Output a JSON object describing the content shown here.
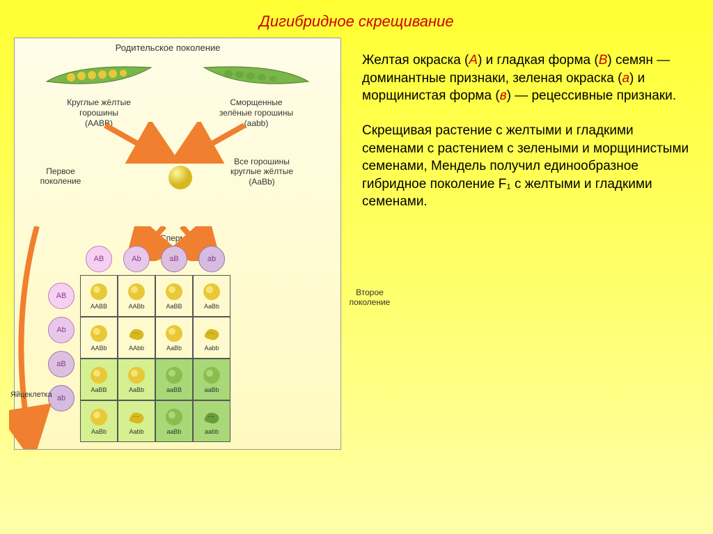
{
  "title": "Дигибридное скрещивание",
  "diagram": {
    "parent_gen_label": "Родительское поколение",
    "parent_left": {
      "caption_l1": "Круглые жёлтые",
      "caption_l2": "горошины",
      "genotype": "(AABB)",
      "pea_color": "#e8c838",
      "pod_color": "#7ab648"
    },
    "parent_right": {
      "caption_l1": "Сморщенные",
      "caption_l2": "зелёные горошины",
      "genotype": "(aabb)",
      "pea_color": "#6aa840",
      "pod_color": "#7ab648"
    },
    "f1_label": "Первое поколение",
    "f1_caption_l1": "Все горошины",
    "f1_caption_l2": "круглые жёлтые",
    "f1_genotype": "(AaBb)",
    "sperm_label": "Спермий",
    "egg_label": "Яйцеклетка",
    "f2_label": "Второе поколение",
    "gametes": [
      "AB",
      "Ab",
      "aB",
      "ab"
    ],
    "grid": [
      [
        {
          "g": "AABB",
          "pea": "round-yellow",
          "bg": "bg-yellow"
        },
        {
          "g": "AABb",
          "pea": "round-yellow",
          "bg": "bg-yellow"
        },
        {
          "g": "AaBB",
          "pea": "round-yellow",
          "bg": "bg-yellow"
        },
        {
          "g": "AaBb",
          "pea": "round-yellow",
          "bg": "bg-yellow"
        }
      ],
      [
        {
          "g": "AABb",
          "pea": "round-yellow",
          "bg": "bg-yellow"
        },
        {
          "g": "AAbb",
          "pea": "wrink-yellow",
          "bg": "bg-yellow"
        },
        {
          "g": "AaBb",
          "pea": "round-yellow",
          "bg": "bg-yellow"
        },
        {
          "g": "Aabb",
          "pea": "wrink-yellow",
          "bg": "bg-yellow"
        }
      ],
      [
        {
          "g": "AaBB",
          "pea": "round-yellow",
          "bg": "bg-lime"
        },
        {
          "g": "AaBb",
          "pea": "round-yellow",
          "bg": "bg-lime"
        },
        {
          "g": "aaBB",
          "pea": "round-green",
          "bg": "bg-green"
        },
        {
          "g": "aaBb",
          "pea": "round-green",
          "bg": "bg-green"
        }
      ],
      [
        {
          "g": "AaBb",
          "pea": "round-yellow",
          "bg": "bg-lime"
        },
        {
          "g": "Aabb",
          "pea": "wrink-yellow",
          "bg": "bg-lime"
        },
        {
          "g": "aaBb",
          "pea": "round-green",
          "bg": "bg-green"
        },
        {
          "g": "aabb",
          "pea": "wrink-green",
          "bg": "bg-green"
        }
      ]
    ]
  },
  "text": {
    "p1_pre": "Желтая окраска (",
    "p1_a": "А",
    "p1_mid1": ") и гладкая форма (",
    "p1_b": "В",
    "p1_mid2": ") семян — доминантные признаки, зеленая окраска (",
    "p1_ra": "а",
    "p1_mid3": ") и морщинистая форма (",
    "p1_rb": "в",
    "p1_end": ") — рецессивные признаки.",
    "p2": "Скрещивая растение с желтыми и гладкими семенами с растением с зелеными и морщинистыми семенами, Мендель получил единообразное гибридное поколение F₁ с желтыми и гладкими семенами."
  },
  "colors": {
    "round_yellow": "#e8c838",
    "wrink_yellow": "#d8b820",
    "round_green": "#8abd50",
    "wrink_green": "#6a9d3a",
    "arrow": "#f08030"
  }
}
